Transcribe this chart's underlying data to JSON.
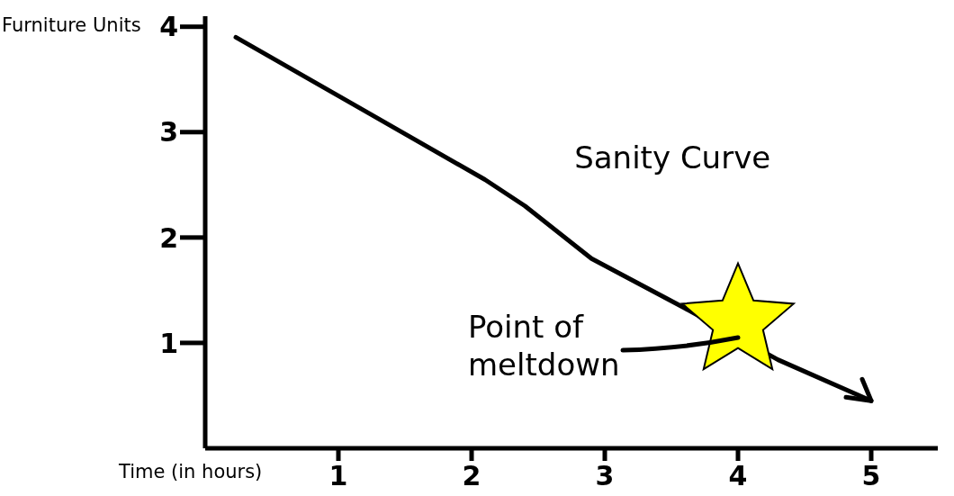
{
  "chart_data": {
    "type": "line",
    "xlabel": "Time (in hours)",
    "ylabel": "Furniture Units",
    "xlim": [
      0,
      5.5
    ],
    "ylim": [
      0,
      4.1
    ],
    "xticks": [
      1,
      2,
      3,
      4,
      5
    ],
    "yticks": [
      1,
      2,
      3,
      4
    ],
    "grid": false,
    "annotations": [
      {
        "text": "Point of meltdown",
        "x": 4,
        "y": 1.05
      }
    ],
    "series": [
      {
        "name": "Sanity Curve",
        "color": "#000000",
        "marker": "none",
        "x": [
          0.23,
          1.2,
          2.1,
          2.4,
          2.9,
          3.6,
          4.3,
          5
        ],
        "values": [
          3.9,
          3.2,
          2.55,
          2.3,
          1.8,
          1.33,
          0.84,
          0.45
        ]
      },
      {
        "type": "scatter",
        "color": "#ffff00",
        "marker": "star",
        "x": [
          4
        ],
        "values": [
          1.2
        ]
      }
    ]
  }
}
